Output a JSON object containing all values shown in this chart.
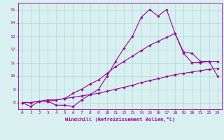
{
  "x": [
    0,
    1,
    2,
    3,
    4,
    5,
    6,
    7,
    8,
    9,
    10,
    11,
    12,
    13,
    14,
    15,
    16,
    17,
    18,
    19,
    20,
    21,
    22,
    23
  ],
  "line1": [
    8.0,
    7.7,
    8.1,
    8.1,
    7.8,
    7.8,
    7.7,
    8.2,
    8.6,
    9.0,
    10.0,
    11.1,
    12.1,
    13.0,
    14.4,
    15.0,
    14.5,
    15.0,
    13.2,
    11.7,
    11.0,
    11.0,
    11.1,
    10.0
  ],
  "line2": [
    8.0,
    8.0,
    8.1,
    8.2,
    8.2,
    8.3,
    8.7,
    9.0,
    9.4,
    9.7,
    10.2,
    10.7,
    11.1,
    11.5,
    11.9,
    12.3,
    12.6,
    12.9,
    13.2,
    11.8,
    11.7,
    11.1,
    11.1,
    11.1
  ],
  "line3": [
    8.0,
    8.0,
    8.1,
    8.1,
    8.2,
    8.3,
    8.4,
    8.5,
    8.6,
    8.7,
    8.85,
    9.0,
    9.15,
    9.3,
    9.5,
    9.65,
    9.8,
    9.95,
    10.1,
    10.2,
    10.3,
    10.4,
    10.5,
    10.55
  ],
  "line_color": "#990099",
  "bg_color": "#d8f0f0",
  "grid_color": "#b0d8d8",
  "axis_color": "#990099",
  "xlabel": "Windchill (Refroidissement éolien,°C)",
  "xlim": [
    -0.5,
    23.5
  ],
  "ylim": [
    7.5,
    15.5
  ],
  "yticks": [
    8,
    9,
    10,
    11,
    12,
    13,
    14,
    15
  ],
  "xticks": [
    0,
    1,
    2,
    3,
    4,
    5,
    6,
    7,
    8,
    9,
    10,
    11,
    12,
    13,
    14,
    15,
    16,
    17,
    18,
    19,
    20,
    21,
    22,
    23
  ]
}
